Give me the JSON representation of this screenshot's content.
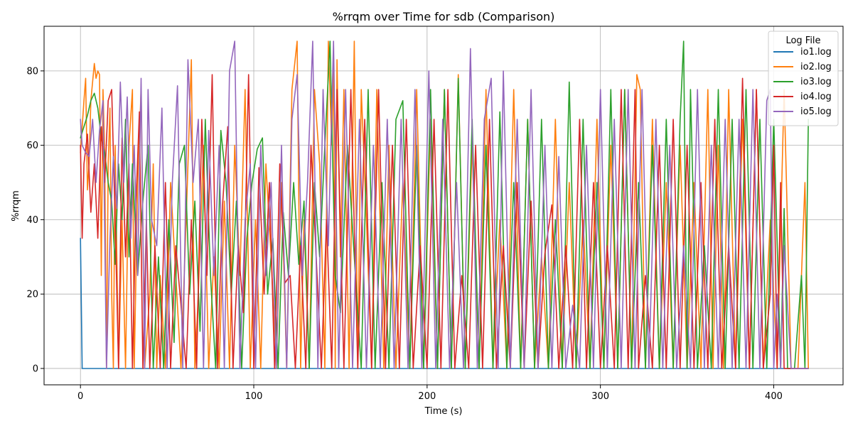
{
  "chart_data": {
    "type": "line",
    "title": "%rrqm over Time for sdb (Comparison)",
    "xlabel": "Time (s)",
    "ylabel": "%rrqm",
    "xlim": [
      -21,
      440
    ],
    "ylim": [
      -4.4,
      92
    ],
    "xticks": [
      0,
      100,
      200,
      300,
      400
    ],
    "yticks": [
      0,
      20,
      40,
      60,
      80
    ],
    "grid": true,
    "legend": {
      "title": "Log File",
      "position": "top-right"
    },
    "series": [
      {
        "name": "io1.log",
        "color": "#1f77b4",
        "x": [
          0,
          1,
          2,
          30,
          60,
          100,
          150,
          200,
          250,
          300,
          350,
          400,
          420
        ],
        "y": [
          35,
          0,
          0,
          0,
          0,
          0,
          0,
          0,
          0,
          0,
          0,
          0,
          0
        ]
      },
      {
        "name": "io2.log",
        "color": "#ff7f0e",
        "x": [
          0,
          2,
          3,
          4,
          5,
          6,
          8,
          9,
          10,
          11,
          12,
          13,
          14,
          15,
          16,
          17,
          18,
          19,
          20,
          22,
          24,
          26,
          28,
          30,
          31,
          33,
          35,
          37,
          40,
          42,
          44,
          46,
          49,
          52,
          55,
          58,
          61,
          64,
          66,
          68,
          71,
          74,
          77,
          80,
          83,
          86,
          89,
          92,
          95,
          98,
          101,
          104,
          107,
          110,
          113,
          116,
          119,
          122,
          125,
          127,
          129,
          132,
          135,
          138,
          141,
          143,
          145,
          146,
          147,
          148,
          150,
          152,
          155,
          158,
          160,
          162,
          165,
          168,
          171,
          175,
          178,
          182,
          186,
          190,
          194,
          198,
          202,
          206,
          210,
          214,
          218,
          222,
          226,
          230,
          234,
          238,
          242,
          246,
          250,
          254,
          258,
          262,
          266,
          270,
          274,
          278,
          282,
          286,
          290,
          294,
          298,
          302,
          306,
          310,
          314,
          318,
          321,
          323,
          326,
          330,
          334,
          338,
          342,
          346,
          350,
          354,
          358,
          362,
          365,
          368,
          371,
          374,
          378,
          382,
          386,
          390,
          394,
          398,
          402,
          406,
          410,
          414,
          418,
          420
        ],
        "y": [
          58,
          72,
          78,
          48,
          55,
          72,
          82,
          78,
          80,
          79,
          25,
          75,
          58,
          0,
          55,
          70,
          20,
          0,
          60,
          0,
          40,
          0,
          60,
          75,
          0,
          50,
          75,
          0,
          20,
          55,
          0,
          25,
          0,
          50,
          25,
          0,
          40,
          83,
          0,
          20,
          60,
          0,
          30,
          0,
          45,
          0,
          60,
          25,
          75,
          0,
          40,
          0,
          55,
          30,
          0,
          50,
          0,
          75,
          88,
          0,
          40,
          0,
          75,
          55,
          0,
          88,
          60,
          83,
          0,
          83,
          30,
          75,
          0,
          88,
          0,
          75,
          40,
          0,
          75,
          0,
          60,
          0,
          50,
          0,
          75,
          0,
          67,
          0,
          75,
          0,
          79,
          0,
          60,
          0,
          75,
          0,
          40,
          0,
          75,
          0,
          67,
          0,
          30,
          0,
          67,
          0,
          50,
          0,
          40,
          0,
          67,
          0,
          60,
          0,
          75,
          0,
          79,
          75,
          0,
          67,
          0,
          50,
          0,
          60,
          0,
          50,
          0,
          75,
          0,
          60,
          0,
          75,
          0,
          67,
          0,
          75,
          0,
          40,
          0,
          75,
          0,
          0,
          50,
          0
        ]
      },
      {
        "name": "io3.log",
        "color": "#2ca02c",
        "x": [
          0,
          2,
          4,
          6,
          8,
          10,
          12,
          14,
          16,
          18,
          20,
          22,
          24,
          26,
          28,
          30,
          33,
          36,
          39,
          42,
          45,
          48,
          51,
          54,
          57,
          60,
          63,
          66,
          69,
          72,
          75,
          78,
          81,
          84,
          87,
          90,
          93,
          96,
          99,
          102,
          105,
          108,
          111,
          114,
          117,
          120,
          123,
          126,
          129,
          132,
          135,
          138,
          141,
          144,
          147,
          150,
          154,
          158,
          162,
          166,
          170,
          174,
          178,
          182,
          186,
          190,
          194,
          198,
          202,
          206,
          210,
          214,
          218,
          222,
          226,
          230,
          234,
          238,
          242,
          246,
          250,
          254,
          258,
          262,
          266,
          270,
          274,
          278,
          282,
          286,
          290,
          294,
          298,
          302,
          306,
          310,
          314,
          318,
          322,
          326,
          330,
          334,
          338,
          342,
          346,
          348,
          350,
          352,
          356,
          360,
          364,
          368,
          372,
          376,
          380,
          384,
          388,
          392,
          396,
          400,
          404,
          406,
          408,
          412,
          416,
          418,
          420
        ],
        "y": [
          62,
          65,
          68,
          72,
          74,
          70,
          62,
          58,
          50,
          45,
          28,
          55,
          40,
          67,
          30,
          55,
          25,
          45,
          60,
          0,
          30,
          0,
          40,
          7,
          55,
          60,
          20,
          45,
          10,
          67,
          25,
          0,
          64,
          50,
          20,
          45,
          0,
          35,
          50,
          59,
          62,
          20,
          35,
          0,
          42,
          25,
          50,
          28,
          45,
          0,
          50,
          30,
          60,
          88,
          25,
          15,
          60,
          30,
          0,
          75,
          0,
          50,
          0,
          67,
          72,
          0,
          60,
          0,
          75,
          0,
          75,
          0,
          78,
          0,
          67,
          0,
          60,
          0,
          69,
          0,
          50,
          0,
          67,
          0,
          67,
          0,
          40,
          0,
          77,
          0,
          67,
          0,
          50,
          0,
          75,
          0,
          75,
          0,
          50,
          0,
          60,
          0,
          67,
          0,
          67,
          88,
          0,
          75,
          0,
          33,
          0,
          75,
          0,
          67,
          0,
          75,
          0,
          67,
          0,
          67,
          0,
          43,
          0,
          0,
          25,
          0,
          67
        ]
      },
      {
        "name": "io4.log",
        "color": "#d62728",
        "x": [
          0,
          1,
          2,
          4,
          6,
          8,
          10,
          12,
          14,
          16,
          18,
          20,
          22,
          24,
          26,
          28,
          30,
          32,
          34,
          36,
          38,
          40,
          43,
          46,
          49,
          52,
          55,
          58,
          61,
          64,
          67,
          70,
          73,
          76,
          79,
          82,
          85,
          88,
          91,
          94,
          97,
          100,
          103,
          106,
          109,
          112,
          115,
          118,
          121,
          124,
          127,
          130,
          133,
          136,
          139,
          142,
          145,
          148,
          152,
          156,
          160,
          164,
          168,
          172,
          176,
          180,
          184,
          188,
          192,
          196,
          200,
          204,
          208,
          212,
          216,
          220,
          224,
          228,
          232,
          236,
          240,
          244,
          248,
          252,
          256,
          260,
          264,
          268,
          272,
          276,
          280,
          284,
          288,
          292,
          296,
          300,
          304,
          308,
          312,
          316,
          320,
          322,
          326,
          330,
          334,
          338,
          342,
          346,
          350,
          354,
          358,
          362,
          366,
          370,
          374,
          378,
          382,
          386,
          390,
          394,
          398,
          400,
          402,
          404,
          406,
          410,
          414,
          418,
          420
        ],
        "y": [
          60,
          35,
          55,
          63,
          42,
          55,
          35,
          65,
          50,
          72,
          75,
          40,
          0,
          62,
          30,
          55,
          0,
          44,
          69,
          0,
          40,
          0,
          33,
          0,
          50,
          0,
          33,
          17,
          0,
          40,
          0,
          67,
          25,
          79,
          0,
          44,
          65,
          0,
          33,
          15,
          79,
          0,
          54,
          20,
          50,
          0,
          55,
          23,
          25,
          0,
          33,
          0,
          60,
          30,
          0,
          40,
          0,
          75,
          0,
          75,
          0,
          67,
          0,
          75,
          0,
          60,
          0,
          67,
          0,
          33,
          0,
          67,
          0,
          75,
          0,
          25,
          0,
          60,
          0,
          67,
          0,
          33,
          0,
          50,
          0,
          45,
          0,
          31,
          44,
          0,
          33,
          0,
          67,
          0,
          50,
          0,
          33,
          0,
          75,
          0,
          75,
          0,
          25,
          0,
          60,
          0,
          67,
          0,
          60,
          0,
          50,
          0,
          67,
          0,
          33,
          0,
          78,
          0,
          75,
          0,
          20,
          60,
          0,
          50,
          0,
          0,
          0,
          0,
          0
        ]
      },
      {
        "name": "io5.log",
        "color": "#9467bd",
        "x": [
          0,
          1,
          3,
          5,
          7,
          9,
          11,
          13,
          15,
          17,
          19,
          21,
          23,
          25,
          27,
          29,
          31,
          33,
          35,
          37,
          39,
          41,
          44,
          47,
          50,
          53,
          56,
          59,
          62,
          65,
          68,
          71,
          74,
          77,
          80,
          83,
          86,
          89,
          92,
          95,
          98,
          101,
          104,
          107,
          110,
          113,
          116,
          119,
          122,
          125,
          128,
          131,
          134,
          137,
          140,
          143,
          146,
          149,
          153,
          157,
          161,
          165,
          169,
          173,
          177,
          181,
          185,
          189,
          193,
          197,
          201,
          205,
          209,
          213,
          217,
          221,
          225,
          229,
          233,
          237,
          241,
          244,
          248,
          252,
          256,
          260,
          264,
          268,
          272,
          276,
          280,
          284,
          288,
          292,
          296,
          300,
          304,
          308,
          312,
          316,
          320,
          324,
          328,
          332,
          336,
          340,
          344,
          348,
          352,
          356,
          360,
          364,
          368,
          372,
          376,
          380,
          384,
          388,
          392,
          396,
          398,
          400,
          402,
          404,
          406,
          410,
          414,
          418,
          420
        ],
        "y": [
          67,
          60,
          58,
          57,
          67,
          50,
          64,
          72,
          0,
          35,
          57,
          43,
          77,
          50,
          73,
          35,
          60,
          25,
          78,
          0,
          75,
          40,
          33,
          70,
          0,
          50,
          76,
          0,
          83,
          50,
          67,
          0,
          64,
          25,
          60,
          0,
          80,
          88,
          0,
          40,
          55,
          0,
          60,
          25,
          50,
          0,
          60,
          0,
          67,
          79,
          25,
          50,
          88,
          0,
          75,
          33,
          88,
          0,
          75,
          0,
          67,
          0,
          60,
          0,
          67,
          0,
          67,
          0,
          75,
          0,
          80,
          0,
          67,
          0,
          50,
          0,
          86,
          0,
          67,
          78,
          0,
          80,
          0,
          67,
          0,
          75,
          0,
          60,
          0,
          57,
          0,
          17,
          0,
          60,
          0,
          75,
          0,
          67,
          0,
          75,
          0,
          75,
          0,
          67,
          0,
          60,
          0,
          33,
          0,
          75,
          0,
          60,
          0,
          67,
          0,
          67,
          0,
          75,
          0,
          72,
          75,
          0,
          20,
          0,
          33,
          0,
          0,
          0,
          0
        ]
      }
    ]
  }
}
